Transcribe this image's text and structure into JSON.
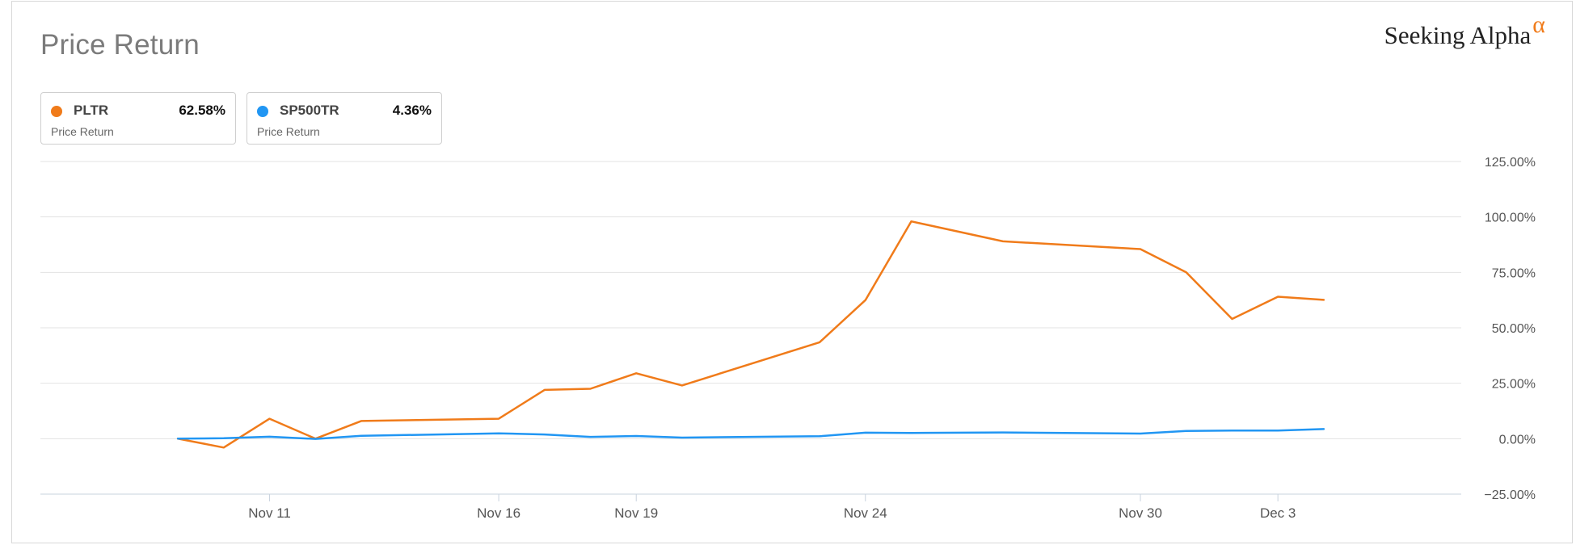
{
  "header": {
    "title": "Price Return",
    "logo_text": "Seeking Alpha",
    "logo_mark": "α"
  },
  "legend": [
    {
      "ticker": "PLTR",
      "value": "62.58%",
      "sub": "Price Return",
      "color": "#f07b1a"
    },
    {
      "ticker": "SP500TR",
      "value": "4.36%",
      "sub": "Price Return",
      "color": "#2196f3"
    }
  ],
  "chart_data": {
    "type": "line",
    "title": "Price Return",
    "xlabel": "",
    "ylabel": "",
    "ylim": [
      -25,
      125
    ],
    "xlim": [
      "2020-11-06",
      "2020-12-07"
    ],
    "grid": true,
    "y_ticks": [
      125,
      100,
      75,
      50,
      25,
      0,
      -25
    ],
    "y_tick_labels": [
      "125.00%",
      "100.00%",
      "75.00%",
      "50.00%",
      "25.00%",
      "0.00%",
      "−25.00%"
    ],
    "x_ticks": [
      {
        "label": "Nov 11",
        "date": "2020-11-11"
      },
      {
        "label": "Nov 16",
        "date": "2020-11-16"
      },
      {
        "label": "Nov 19",
        "date": "2020-11-19"
      },
      {
        "label": "Nov 24",
        "date": "2020-11-24"
      },
      {
        "label": "Nov 30",
        "date": "2020-11-30"
      },
      {
        "label": "Dec 3",
        "date": "2020-12-03"
      }
    ],
    "series": [
      {
        "name": "PLTR",
        "color": "#f07b1a",
        "points": [
          [
            "2020-11-09",
            0
          ],
          [
            "2020-11-10",
            -4
          ],
          [
            "2020-11-11",
            9
          ],
          [
            "2020-11-12",
            0
          ],
          [
            "2020-11-13",
            8
          ],
          [
            "2020-11-16",
            9
          ],
          [
            "2020-11-17",
            22
          ],
          [
            "2020-11-18",
            22.5
          ],
          [
            "2020-11-19",
            29.5
          ],
          [
            "2020-11-20",
            24
          ],
          [
            "2020-11-23",
            43.5
          ],
          [
            "2020-11-24",
            62.5
          ],
          [
            "2020-11-25",
            98
          ],
          [
            "2020-11-27",
            89
          ],
          [
            "2020-11-30",
            85.5
          ],
          [
            "2020-12-01",
            75
          ],
          [
            "2020-12-02",
            54
          ],
          [
            "2020-12-03",
            64
          ],
          [
            "2020-12-04",
            62.58
          ]
        ]
      },
      {
        "name": "SP500TR",
        "color": "#2196f3",
        "points": [
          [
            "2020-11-09",
            0
          ],
          [
            "2020-11-10",
            0.2
          ],
          [
            "2020-11-11",
            0.9
          ],
          [
            "2020-11-12",
            -0.1
          ],
          [
            "2020-11-13",
            1.3
          ],
          [
            "2020-11-16",
            2.4
          ],
          [
            "2020-11-17",
            1.9
          ],
          [
            "2020-11-18",
            0.8
          ],
          [
            "2020-11-19",
            1.2
          ],
          [
            "2020-11-20",
            0.5
          ],
          [
            "2020-11-23",
            1.1
          ],
          [
            "2020-11-24",
            2.7
          ],
          [
            "2020-11-25",
            2.6
          ],
          [
            "2020-11-27",
            2.8
          ],
          [
            "2020-11-30",
            2.3
          ],
          [
            "2020-12-01",
            3.5
          ],
          [
            "2020-12-02",
            3.7
          ],
          [
            "2020-12-03",
            3.7
          ],
          [
            "2020-12-04",
            4.36
          ]
        ]
      }
    ]
  }
}
